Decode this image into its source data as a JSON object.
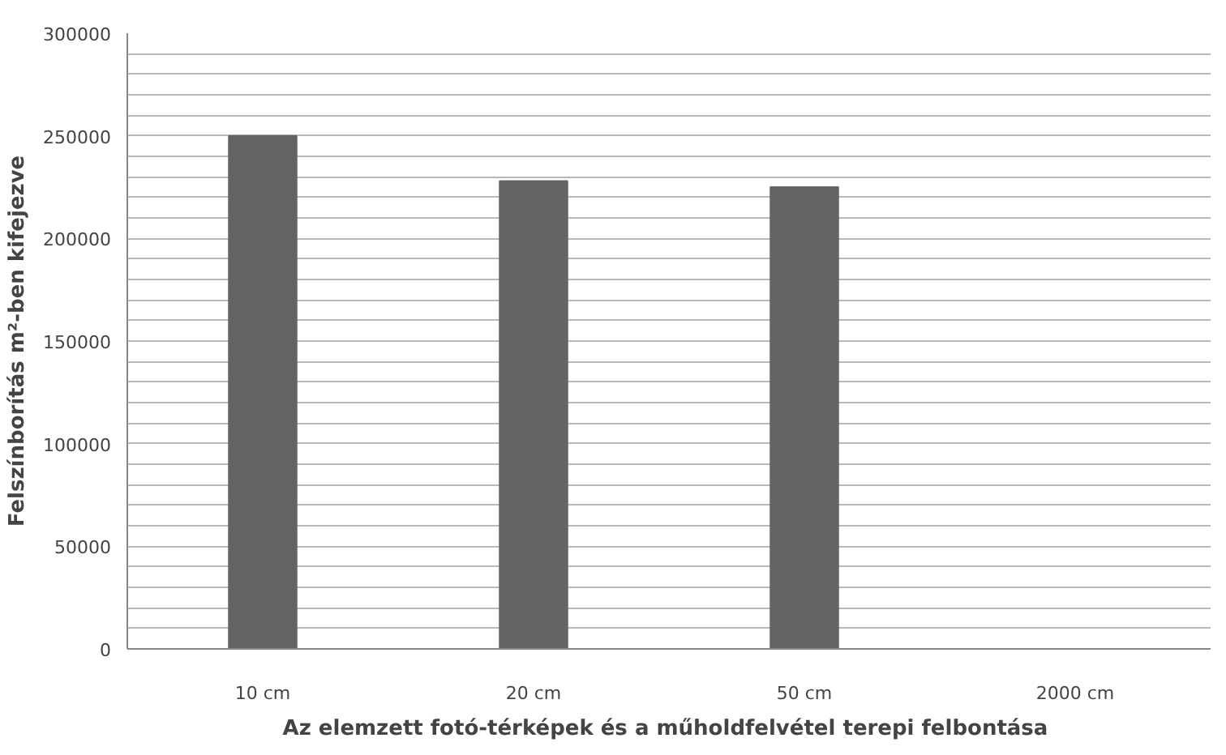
{
  "chart_data": {
    "type": "bar",
    "xlabel": "Az elemzett fotó-térképek és a műholdfelvétel  terepi felbontása",
    "ylabel": "Felszínborítás m²-ben kifejezve",
    "categories": [
      "10 cm",
      "20 cm",
      "50 cm",
      "2000 cm"
    ],
    "values": [
      250000,
      228000,
      225000,
      0
    ],
    "color": "#646464",
    "ylim": [
      0,
      300000
    ],
    "yticks": [
      0,
      {
        "value": 10000,
        "label": null
      },
      {
        "value": 20000,
        "label": null
      },
      {
        "value": 30000,
        "label": null
      },
      {
        "value": 40000,
        "label": null
      },
      50000,
      {
        "value": 60000,
        "label": null
      },
      {
        "value": 70000,
        "label": null
      },
      {
        "value": 80000,
        "label": null
      },
      {
        "value": 90000,
        "label": null
      },
      100000,
      {
        "value": 110000,
        "label": null
      },
      {
        "value": 120000,
        "label": null
      },
      {
        "value": 130000,
        "label": null
      },
      {
        "value": 140000,
        "label": null
      },
      150000,
      {
        "value": 160000,
        "label": null
      },
      {
        "value": 170000,
        "label": null
      },
      {
        "value": 180000,
        "label": null
      },
      {
        "value": 190000,
        "label": null
      },
      200000,
      {
        "value": 210000,
        "label": null
      },
      {
        "value": 220000,
        "label": null
      },
      {
        "value": 230000,
        "label": null
      },
      {
        "value": 240000,
        "label": null
      },
      250000,
      {
        "value": 260000,
        "label": null
      },
      {
        "value": 270000,
        "label": null
      },
      {
        "value": 280000,
        "label": null
      },
      {
        "value": 290000,
        "label": null
      },
      300000
    ],
    "grid": "y"
  }
}
